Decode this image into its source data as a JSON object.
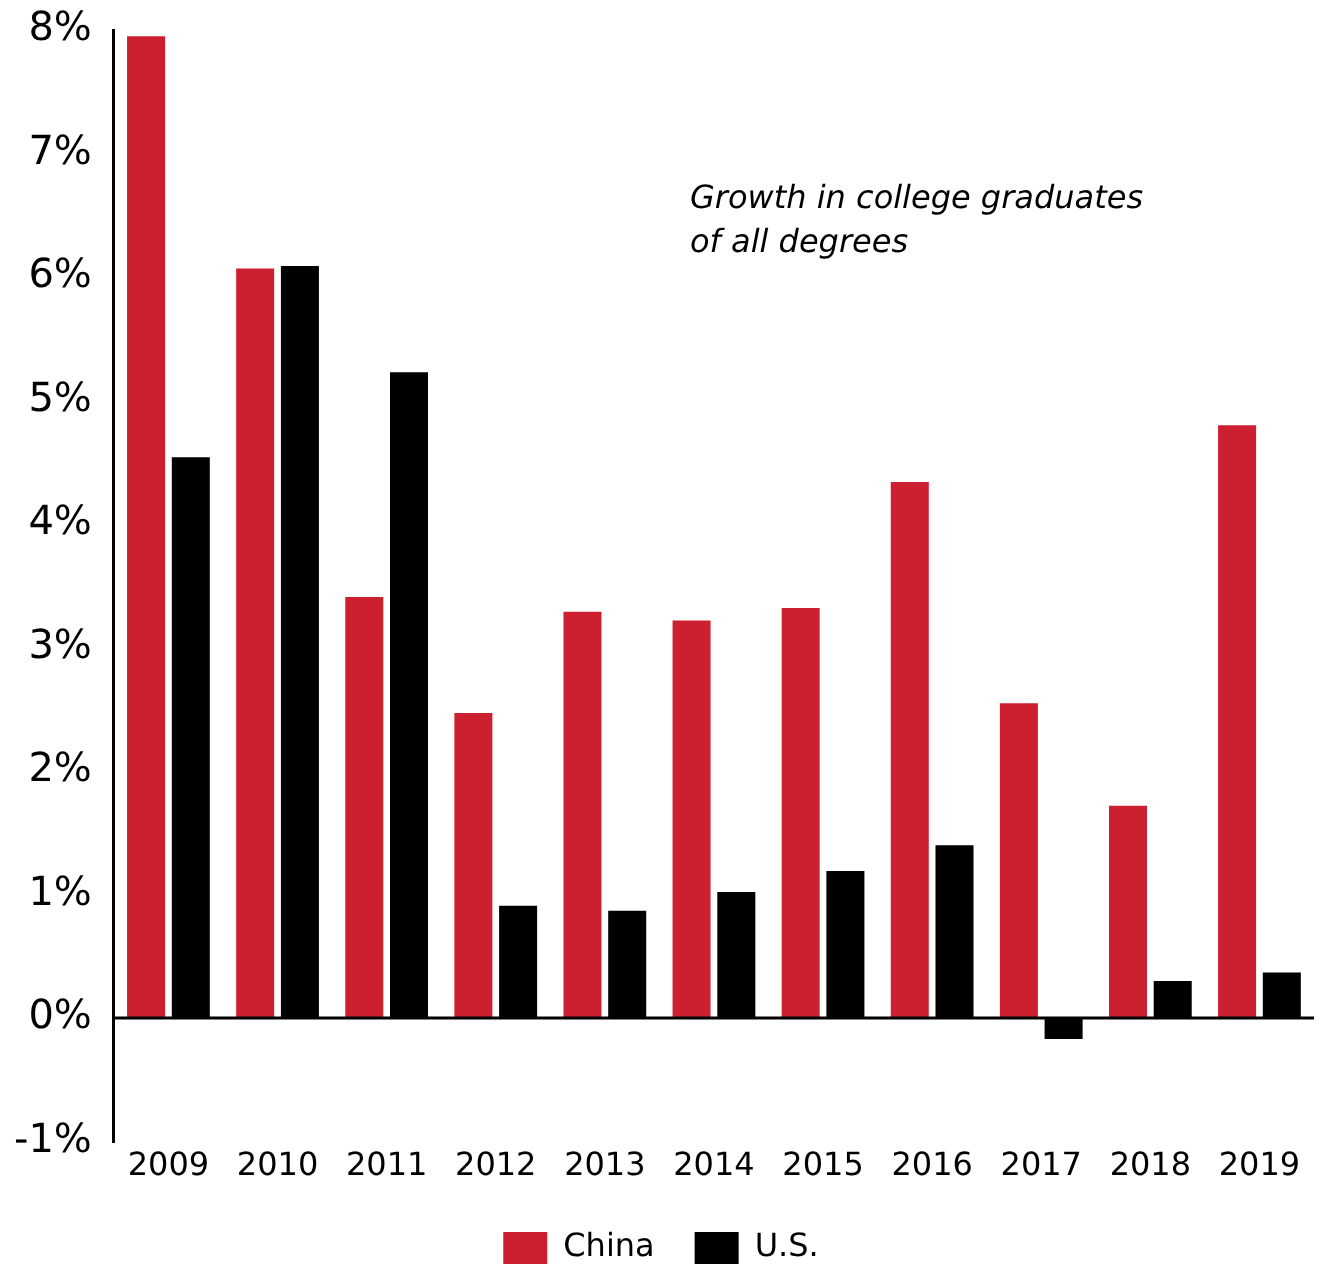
{
  "chart_data": {
    "type": "bar",
    "categories": [
      "2009",
      "2010",
      "2011",
      "2012",
      "2013",
      "2014",
      "2015",
      "2016",
      "2017",
      "2018",
      "2019"
    ],
    "series": [
      {
        "name": "China",
        "color": "#cc2031",
        "values": [
          7.95,
          6.07,
          3.41,
          2.47,
          3.29,
          3.22,
          3.32,
          4.34,
          2.55,
          1.72,
          4.8
        ]
      },
      {
        "name": "U.S.",
        "color": "#000000",
        "values": [
          4.54,
          6.09,
          5.23,
          0.91,
          0.87,
          1.02,
          1.19,
          1.4,
          -0.17,
          0.3,
          0.37
        ]
      }
    ],
    "ylim": [
      -1,
      8
    ],
    "yticks": [
      {
        "value": -1,
        "label": "-1%"
      },
      {
        "value": 0,
        "label": "0%"
      },
      {
        "value": 1,
        "label": "1%"
      },
      {
        "value": 2,
        "label": "2%"
      },
      {
        "value": 3,
        "label": "3%"
      },
      {
        "value": 4,
        "label": "4%"
      },
      {
        "value": 5,
        "label": "5%"
      },
      {
        "value": 6,
        "label": "6%"
      },
      {
        "value": 7,
        "label": "7%"
      },
      {
        "value": 8,
        "label": "8%"
      }
    ],
    "ref_lines": [
      {
        "axis": "y",
        "value": 0,
        "color": "#000000"
      }
    ],
    "annotations": [
      "Growth in college graduates\nof all degrees"
    ],
    "grid": false,
    "legend": "bottom"
  }
}
